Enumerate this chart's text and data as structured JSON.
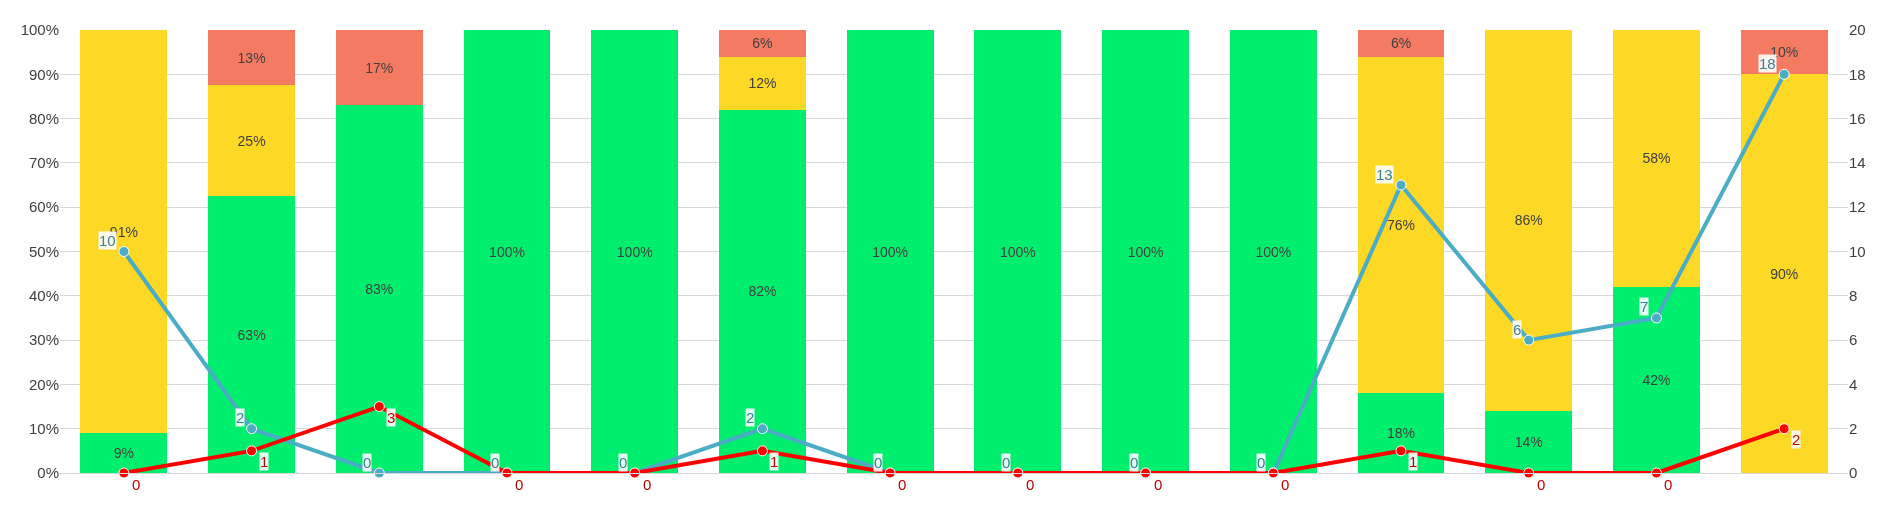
{
  "chart_data": {
    "type": "bar",
    "stacked": true,
    "categories": [
      null,
      null,
      null,
      null,
      null,
      null,
      null,
      null,
      null,
      null,
      null,
      null,
      null,
      null
    ],
    "series": [
      {
        "color": "#00ee6e",
        "values": [
          9,
          62.5,
          83,
          100,
          100,
          82,
          100,
          100,
          100,
          100,
          18,
          14,
          42,
          0
        ],
        "value_labels": [
          "9%",
          "63%",
          "83%",
          "100%",
          "100%",
          "82%",
          "100%",
          "100%",
          "100%",
          "100%",
          "18%",
          "14%",
          "42%",
          null
        ]
      },
      {
        "color": "#fdd825",
        "values": [
          91,
          25,
          0,
          0,
          0,
          12,
          0,
          0,
          0,
          0,
          76,
          86,
          58,
          90
        ],
        "value_labels": [
          "91%",
          "25%",
          null,
          null,
          null,
          "12%",
          null,
          null,
          null,
          null,
          "76%",
          "86%",
          "58%",
          "90%"
        ]
      },
      {
        "color": "#f47b62",
        "values": [
          0,
          12.5,
          17,
          0,
          0,
          6,
          0,
          0,
          0,
          0,
          6,
          0,
          0,
          10
        ],
        "value_labels": [
          null,
          "13%",
          "17%",
          null,
          null,
          "6%",
          null,
          null,
          null,
          null,
          "6%",
          null,
          null,
          "10%"
        ]
      },
      {
        "type": "line",
        "axis": "y2",
        "color": "#4bacc6",
        "values": [
          10,
          2,
          0,
          0,
          0,
          2,
          0,
          0,
          0,
          0,
          13,
          6,
          7,
          18
        ],
        "value_labels": [
          "10",
          "2",
          "0",
          "0",
          "0",
          "2",
          "0",
          "0",
          "0",
          "0",
          "13",
          "6",
          "7",
          "18"
        ]
      },
      {
        "type": "line",
        "axis": "y2",
        "color": "#ff0000",
        "values": [
          0,
          1,
          3,
          0,
          0,
          1,
          0,
          0,
          0,
          0,
          1,
          0,
          0,
          2
        ],
        "value_labels": [
          "0",
          "1",
          "3",
          "0",
          "0",
          "1",
          "0",
          "0",
          "0",
          "0",
          "1",
          "0",
          "0",
          "2"
        ]
      }
    ],
    "ylim": [
      0,
      100
    ],
    "yticks": [
      {
        "value": 0,
        "label": "0%"
      },
      {
        "value": 10,
        "label": "10%"
      },
      {
        "value": 20,
        "label": "20%"
      },
      {
        "value": 30,
        "label": "30%"
      },
      {
        "value": 40,
        "label": "40%"
      },
      {
        "value": 50,
        "label": "50%"
      },
      {
        "value": 60,
        "label": "60%"
      },
      {
        "value": 70,
        "label": "70%"
      },
      {
        "value": 80,
        "label": "80%"
      },
      {
        "value": 90,
        "label": "90%"
      },
      {
        "value": 100,
        "label": "100%"
      }
    ],
    "y2lim": [
      0,
      20
    ],
    "y2ticks": [
      0,
      2,
      4,
      6,
      8,
      10,
      12,
      14,
      16,
      18,
      20
    ],
    "grid": "y",
    "legend": false,
    "marker": "circle",
    "line_style": "solid",
    "tick_labels": "y"
  }
}
